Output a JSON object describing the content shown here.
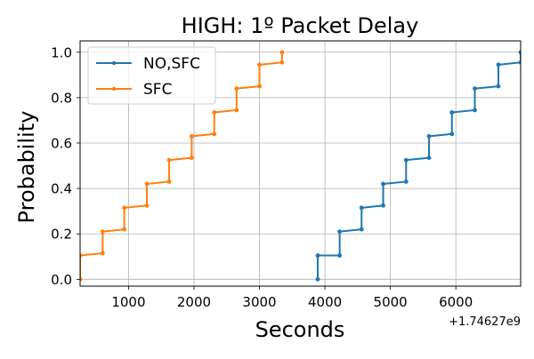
{
  "chart_data": {
    "type": "line",
    "title": "HIGH: 1º Packet Delay",
    "xlabel": "Seconds",
    "ylabel": "Probability",
    "x_offset_label": "+1.74627e9",
    "xlim": [
      260,
      6990
    ],
    "ylim": [
      -0.03,
      1.05
    ],
    "xticks": [
      1000,
      2000,
      3000,
      4000,
      5000,
      6000
    ],
    "yticks": [
      0.0,
      0.2,
      0.4,
      0.6,
      0.8,
      1.0
    ],
    "xtick_labels": [
      "1000",
      "2000",
      "3000",
      "4000",
      "5000",
      "6000"
    ],
    "ytick_labels": [
      "0.0",
      "0.2",
      "0.4",
      "0.6",
      "0.8",
      "1.0"
    ],
    "grid": true,
    "legend_position": "upper left",
    "series": [
      {
        "name": "NO,SFC",
        "color": "#1f77b4",
        "x": [
          3890,
          3890,
          4225,
          4225,
          4560,
          4560,
          4890,
          4890,
          5240,
          5240,
          5590,
          5590,
          5940,
          5940,
          6290,
          6290,
          6650,
          6650,
          6990,
          6990
        ],
        "y": [
          0.0,
          0.105,
          0.105,
          0.21,
          0.22,
          0.315,
          0.325,
          0.42,
          0.43,
          0.525,
          0.535,
          0.63,
          0.64,
          0.735,
          0.745,
          0.84,
          0.85,
          0.945,
          0.955,
          1.0
        ]
      },
      {
        "name": "SFC",
        "color": "#ff7f0e",
        "x": [
          260,
          260,
          605,
          605,
          935,
          935,
          1280,
          1280,
          1620,
          1620,
          1965,
          1965,
          2310,
          2310,
          2650,
          2650,
          3000,
          3000,
          3345,
          3345
        ],
        "y": [
          0.0,
          0.105,
          0.115,
          0.21,
          0.22,
          0.315,
          0.325,
          0.42,
          0.43,
          0.525,
          0.535,
          0.63,
          0.64,
          0.735,
          0.745,
          0.84,
          0.85,
          0.945,
          0.955,
          1.0
        ]
      }
    ]
  }
}
